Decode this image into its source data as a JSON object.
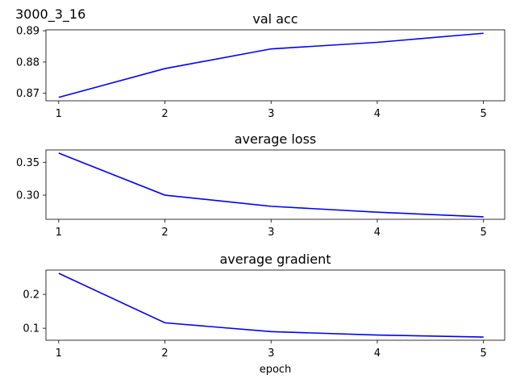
{
  "figure": {
    "title": "3000_3_16"
  },
  "chart_data": [
    {
      "type": "line",
      "title": "val acc",
      "xlabel": "",
      "ylabel": "",
      "x": [
        1,
        2,
        3,
        4,
        5
      ],
      "series": [
        {
          "values": [
            0.8687,
            0.8779,
            0.8842,
            0.8863,
            0.8892
          ],
          "color": "#0000ff"
        }
      ],
      "xticks": [
        "1",
        "2",
        "3",
        "4",
        "5"
      ],
      "yticks": [
        {
          "value": 0.87,
          "label": "0.87"
        },
        {
          "value": 0.88,
          "label": "0.88"
        },
        {
          "value": 0.89,
          "label": "0.89"
        }
      ],
      "xlim": [
        0.88,
        5.2
      ],
      "ylim": [
        0.8676,
        0.8903
      ],
      "grid": false
    },
    {
      "type": "line",
      "title": "average loss",
      "xlabel": "",
      "ylabel": "",
      "x": [
        1,
        2,
        3,
        4,
        5
      ],
      "series": [
        {
          "values": [
            0.364,
            0.3,
            0.283,
            0.274,
            0.267
          ],
          "color": "#0000ff"
        }
      ],
      "xticks": [
        "1",
        "2",
        "3",
        "4",
        "5"
      ],
      "yticks": [
        {
          "value": 0.3,
          "label": "0.30"
        },
        {
          "value": 0.35,
          "label": "0.35"
        }
      ],
      "xlim": [
        0.88,
        5.2
      ],
      "ylim": [
        0.2632,
        0.3688
      ],
      "grid": false
    },
    {
      "type": "line",
      "title": "average gradient",
      "xlabel": "epoch",
      "ylabel": "",
      "x": [
        1,
        2,
        3,
        4,
        5
      ],
      "series": [
        {
          "values": [
            0.262,
            0.116,
            0.09,
            0.08,
            0.074
          ],
          "color": "#0000ff"
        }
      ],
      "xticks": [
        "1",
        "2",
        "3",
        "4",
        "5"
      ],
      "yticks": [
        {
          "value": 0.1,
          "label": "0.1"
        },
        {
          "value": 0.2,
          "label": "0.2"
        }
      ],
      "xlim": [
        0.88,
        5.2
      ],
      "ylim": [
        0.0646,
        0.2716
      ],
      "grid": false
    }
  ]
}
